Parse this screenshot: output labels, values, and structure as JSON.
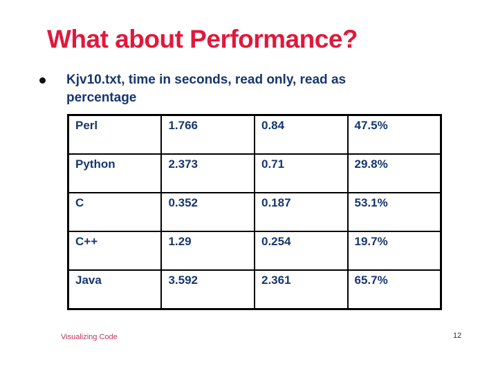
{
  "title": "What about Performance?",
  "bullet": {
    "text": "Kjv10.txt, time in seconds, read only, read as percentage"
  },
  "table": {
    "rows": [
      [
        "Perl",
        "1.766",
        "0.84",
        "47.5%"
      ],
      [
        "Python",
        "2.373",
        "0.71",
        "29.8%"
      ],
      [
        "C",
        "0.352",
        "0.187",
        "53.1%"
      ],
      [
        "C++",
        "1.29",
        "0.254",
        "19.7%"
      ],
      [
        "Java",
        "3.592",
        "2.361",
        "65.7%"
      ]
    ]
  },
  "footer": {
    "left_text": "Visualizing Code",
    "page_number": "12"
  },
  "colors": {
    "title": "#e1183c",
    "body": "#16366f",
    "bullet": "#111111",
    "border": "#000000",
    "footer": "#bf3156",
    "page": "#2b2b2b",
    "background": "#ffffff"
  }
}
